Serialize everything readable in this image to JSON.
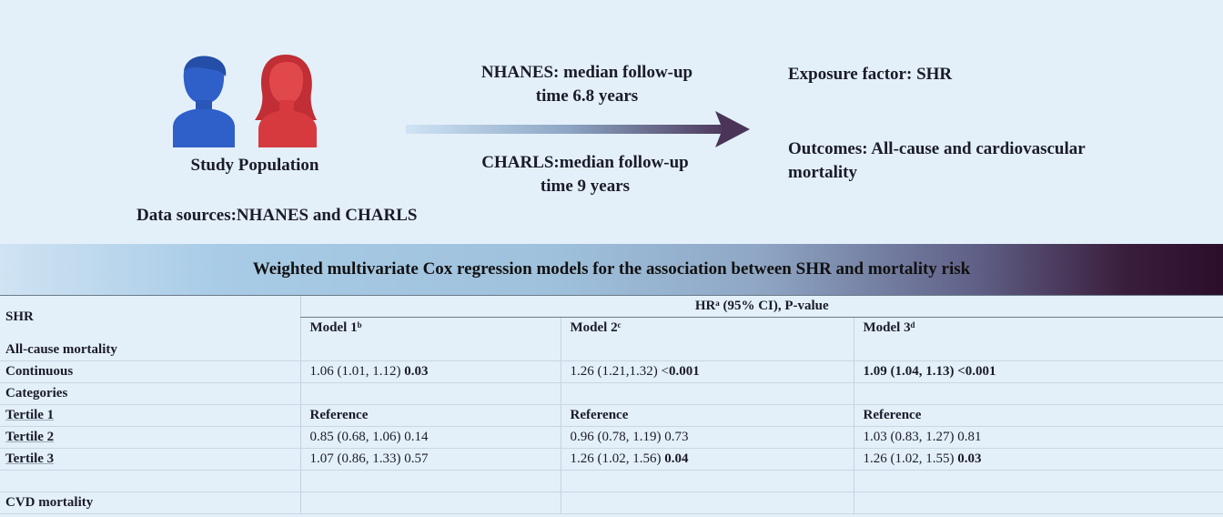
{
  "top": {
    "study_population": "Study Population",
    "data_sources": "Data sources:NHANES and CHARLS",
    "nhanes_line1": "NHANES: median follow-up",
    "nhanes_line2": "time 6.8 years",
    "charls_line1": "CHARLS:median follow-up",
    "charls_line2": "time 9 years",
    "exposure": "Exposure factor: SHR",
    "outcomes_line1": "Outcomes: All-cause and cardiovascular",
    "outcomes_line2": "mortality",
    "colors": {
      "male": "#2f5fc8",
      "female": "#d63a3f",
      "arrow_dark": "#4a3558",
      "arrow_light": "#cfe4f5"
    }
  },
  "banner": {
    "title": "Weighted multivariate Cox regression models for the association between SHR and mortality risk"
  },
  "table": {
    "col0_header": "SHR",
    "group_header": "HRᵃ (95% CI), P-value",
    "models": [
      "Model 1ᵇ",
      "Model 2ᶜ",
      "Model 3ᵈ"
    ],
    "rows": [
      {
        "label": "All-cause mortality",
        "label_bold": true,
        "cells": [
          {
            "t": "",
            "b": ""
          },
          {
            "t": "",
            "b": ""
          },
          {
            "t": "",
            "b": ""
          }
        ]
      },
      {
        "label": "Continuous",
        "label_bold": true,
        "cells": [
          {
            "t": "1.06 (1.01, 1.12) ",
            "b": "0.03"
          },
          {
            "t": "1.26 (1.21,1.32) <",
            "b": "0.001"
          },
          {
            "t": "",
            "b": "1.09 (1.04, 1.13) <0.001"
          }
        ]
      },
      {
        "label": "Categories",
        "label_bold": true,
        "cells": [
          {
            "t": "",
            "b": ""
          },
          {
            "t": "",
            "b": ""
          },
          {
            "t": "",
            "b": ""
          }
        ]
      },
      {
        "label": "Tertile 1",
        "label_bold": true,
        "underline": true,
        "cells": [
          {
            "t": "",
            "b": "Reference"
          },
          {
            "t": "",
            "b": "Reference"
          },
          {
            "t": "",
            "b": "Reference"
          }
        ]
      },
      {
        "label": "Tertile 2",
        "label_bold": true,
        "underline": true,
        "cells": [
          {
            "t": "0.85 (0.68, 1.06) 0.14",
            "b": ""
          },
          {
            "t": "0.96 (0.78, 1.19) 0.73",
            "b": ""
          },
          {
            "t": "1.03 (0.83, 1.27) 0.81",
            "b": ""
          }
        ]
      },
      {
        "label": "Tertile 3",
        "label_bold": true,
        "underline": true,
        "cells": [
          {
            "t": "1.07 (0.86, 1.33) 0.57",
            "b": ""
          },
          {
            "t": "1.26 (1.02, 1.56) ",
            "b": "0.04"
          },
          {
            "t": "1.26 (1.02, 1.55) ",
            "b": "0.03"
          }
        ]
      },
      {
        "label": "",
        "label_bold": false,
        "cells": [
          {
            "t": "",
            "b": ""
          },
          {
            "t": "",
            "b": ""
          },
          {
            "t": "",
            "b": ""
          }
        ]
      },
      {
        "label": "CVD mortality",
        "label_bold": true,
        "cells": [
          {
            "t": "",
            "b": ""
          },
          {
            "t": "",
            "b": ""
          },
          {
            "t": "",
            "b": ""
          }
        ]
      }
    ]
  }
}
